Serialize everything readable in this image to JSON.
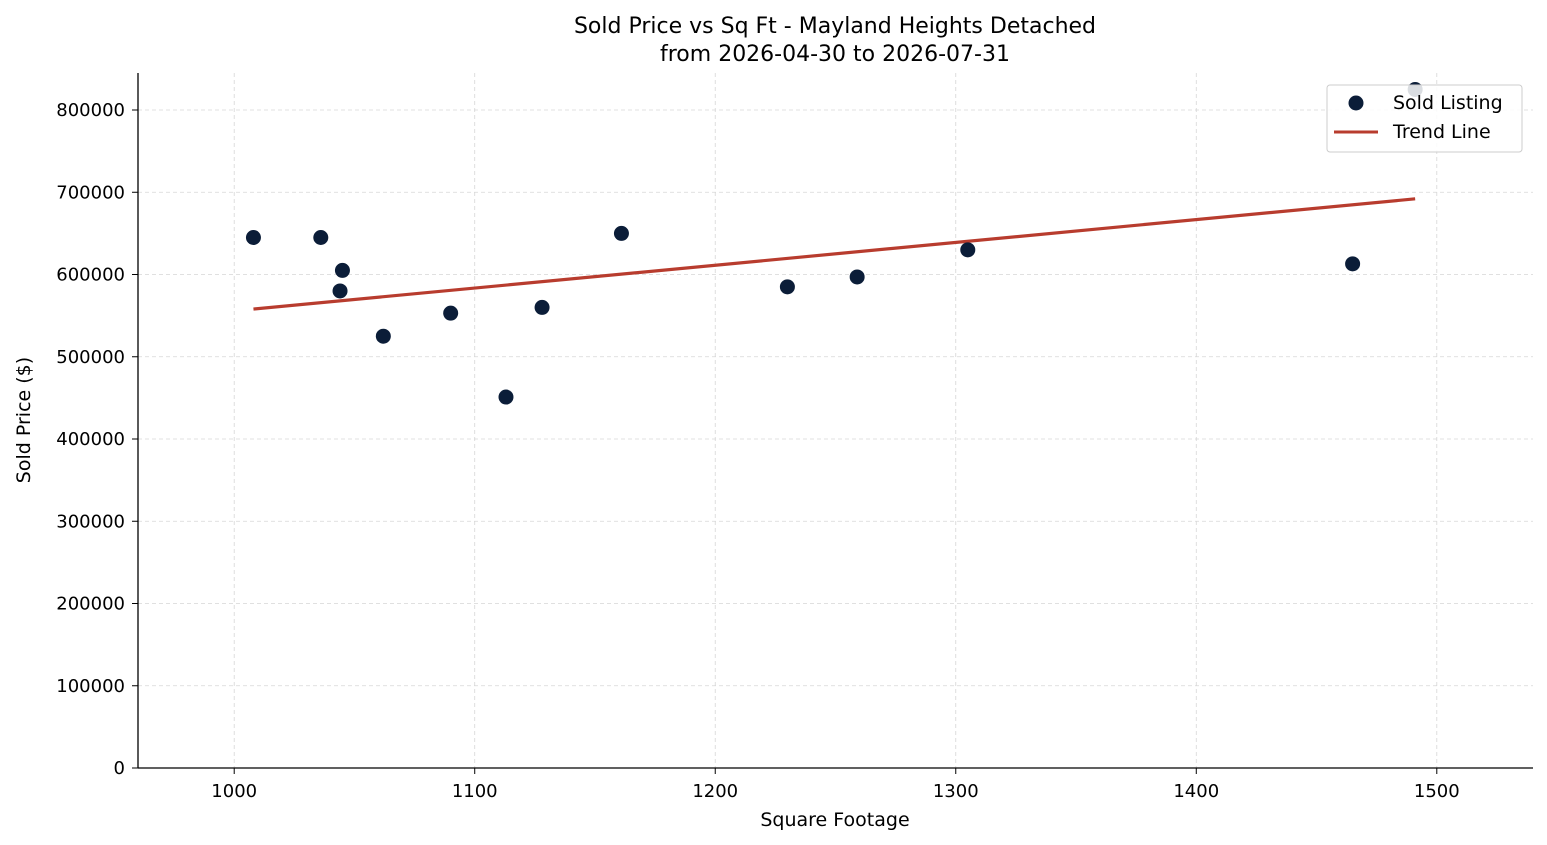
{
  "chart_data": {
    "type": "scatter",
    "title": "Sold Price vs Sq Ft - Mayland Heights Detached",
    "subtitle": "from 2026-04-30 to 2026-07-31",
    "xlabel": "Square Footage",
    "ylabel": "Sold Price ($)",
    "xlim": [
      960,
      1540
    ],
    "ylim": [
      0,
      845000
    ],
    "x_ticks": [
      1000,
      1100,
      1200,
      1300,
      1400,
      1500
    ],
    "y_ticks": [
      0,
      100000,
      200000,
      300000,
      400000,
      500000,
      600000,
      700000,
      800000
    ],
    "grid": true,
    "legend_position": "top-right",
    "series": [
      {
        "name": "Sold Listing",
        "kind": "scatter",
        "color": "#0b1d38",
        "points": [
          {
            "x": 1008,
            "y": 645000
          },
          {
            "x": 1036,
            "y": 645000
          },
          {
            "x": 1044,
            "y": 580000
          },
          {
            "x": 1045,
            "y": 605000
          },
          {
            "x": 1062,
            "y": 525000
          },
          {
            "x": 1090,
            "y": 553000
          },
          {
            "x": 1113,
            "y": 451000
          },
          {
            "x": 1128,
            "y": 560000
          },
          {
            "x": 1161,
            "y": 650000
          },
          {
            "x": 1230,
            "y": 585000
          },
          {
            "x": 1259,
            "y": 597000
          },
          {
            "x": 1305,
            "y": 630000
          },
          {
            "x": 1465,
            "y": 613000
          },
          {
            "x": 1491,
            "y": 825000
          }
        ]
      },
      {
        "name": "Trend Line",
        "kind": "line",
        "color": "#b83c2e",
        "points": [
          {
            "x": 1008,
            "y": 558000
          },
          {
            "x": 1491,
            "y": 692000
          }
        ]
      }
    ]
  }
}
